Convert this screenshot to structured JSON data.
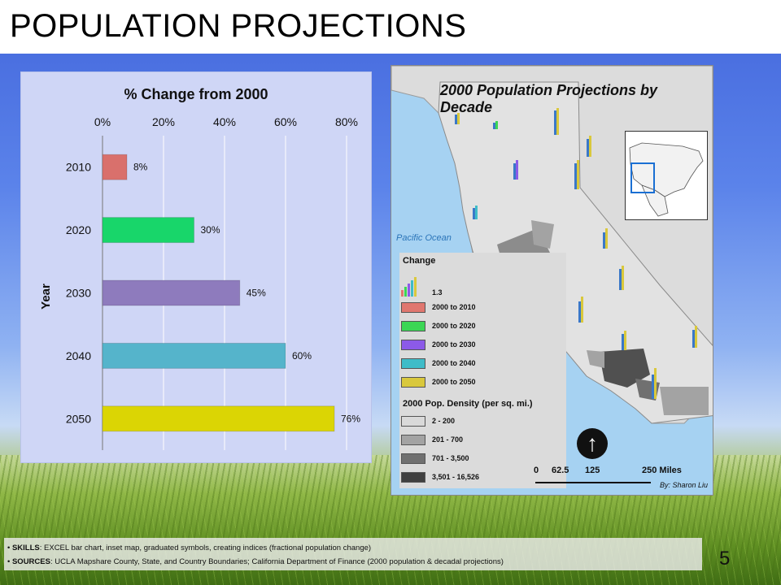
{
  "slide": {
    "title": "POPULATION PROJECTIONS",
    "page_number": "5"
  },
  "chart_data": {
    "type": "bar",
    "orientation": "horizontal",
    "title": "% Change from 2000",
    "xlabel": "",
    "ylabel": "Year",
    "categories": [
      "2010",
      "2020",
      "2030",
      "2040",
      "2050"
    ],
    "values": [
      8,
      30,
      45,
      60,
      76
    ],
    "data_labels": [
      "8%",
      "30%",
      "45%",
      "60%",
      "76%"
    ],
    "colors": [
      "#d9706c",
      "#18d66a",
      "#8e7bbd",
      "#55b4cb",
      "#dbd504"
    ],
    "xlim": [
      0,
      80
    ],
    "xticks": [
      "0%",
      "20%",
      "40%",
      "60%",
      "80%"
    ],
    "x_axis_position": "top",
    "grid": true,
    "legend": "none"
  },
  "map": {
    "title": "2000 Population Projections by Decade",
    "ocean_label": "Pacific Ocean",
    "legend": {
      "change_heading": "Change",
      "symbol_value": "1.3",
      "change_items": [
        {
          "label": "2000 to 2010",
          "color": "#e0776f"
        },
        {
          "label": "2000 to 2020",
          "color": "#3bd654"
        },
        {
          "label": "2000 to 2030",
          "color": "#8c5ae8"
        },
        {
          "label": "2000 to 2040",
          "color": "#3fbcc8"
        },
        {
          "label": "2000 to 2050",
          "color": "#d9c83c"
        }
      ],
      "density_heading": "2000 Pop. Density (per sq. mi.)",
      "density_items": [
        {
          "label": "2 - 200",
          "color": "#d9d9d9"
        },
        {
          "label": "201 - 700",
          "color": "#a3a3a3"
        },
        {
          "label": "701 - 3,500",
          "color": "#707070"
        },
        {
          "label": "3,501 - 16,526",
          "color": "#404040"
        }
      ]
    },
    "scale": {
      "labels": [
        "0",
        "62.5",
        "125",
        "250 Miles"
      ]
    },
    "credit": "By: Sharon Liu",
    "north_arrow": "north-arrow-icon"
  },
  "notes": {
    "skills_label": "SKILLS",
    "skills_text": ": EXCEL bar chart, inset map, graduated symbols, creating indices (fractional population change)",
    "sources_label": "SOURCES",
    "sources_text": ": UCLA Mapshare County, State, and Country Boundaries; California Department of Finance (2000 population & decadal projections)"
  }
}
